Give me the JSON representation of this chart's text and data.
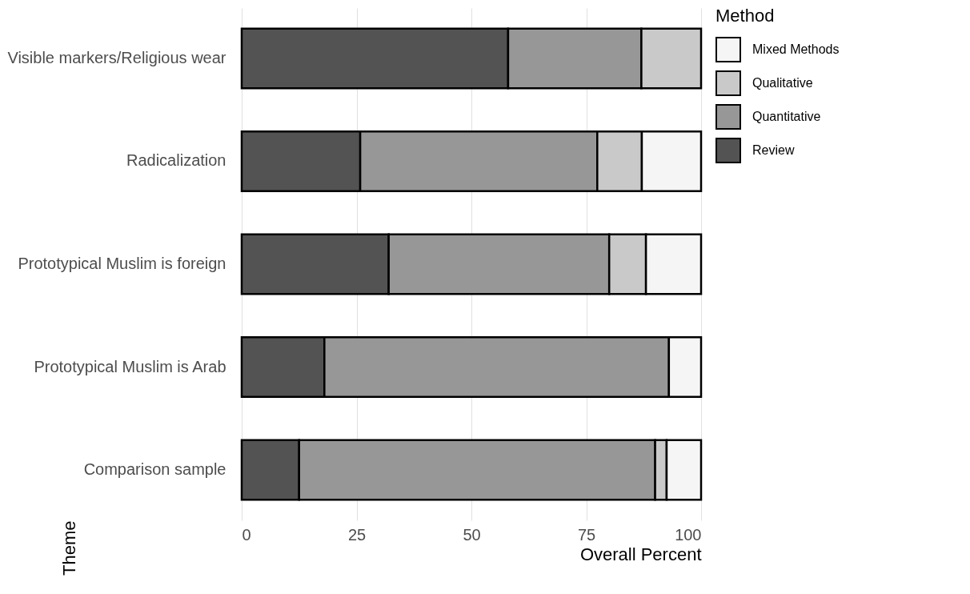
{
  "chart_data": {
    "type": "bar",
    "orientation": "horizontal",
    "stacked": true,
    "xlabel": "Overall Percent",
    "ylabel": "Theme",
    "legend_title": "Method",
    "categories": [
      "Visible markers/Religious wear",
      "Radicalization",
      "Prototypical Muslim is foreign",
      "Prototypical Muslim is Arab",
      "Comparison sample"
    ],
    "series": [
      {
        "name": "Review",
        "color": "#535353",
        "values": [
          58,
          25.8,
          32,
          18,
          12.5
        ]
      },
      {
        "name": "Quantitative",
        "color": "#979797",
        "values": [
          29,
          51.6,
          48,
          75,
          77.5
        ]
      },
      {
        "name": "Qualitative",
        "color": "#c9c9c9",
        "values": [
          13,
          9.7,
          8,
          null,
          2.5
        ]
      },
      {
        "name": "Mixed Methods",
        "color": "#f5f5f5",
        "values": [
          null,
          12.9,
          12,
          7,
          7.5
        ]
      }
    ],
    "xlim": [
      0,
      100
    ],
    "xticks": [
      0,
      25,
      50,
      75,
      100
    ],
    "grid": true,
    "legend": "right"
  }
}
